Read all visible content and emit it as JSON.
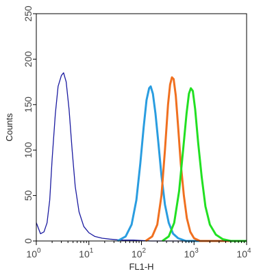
{
  "chart_data": {
    "type": "line",
    "xlabel": "FL1-H",
    "ylabel": "Counts",
    "x_scale": "log",
    "xlim": [
      1,
      10000
    ],
    "ylim": [
      0,
      250
    ],
    "y_ticks": [
      0,
      50,
      100,
      150,
      200,
      250
    ],
    "y_tick_labels": [
      "0",
      "50",
      "100",
      "150",
      "200",
      "250"
    ],
    "x_ticks": [
      1,
      10,
      100,
      1000,
      10000
    ],
    "x_tick_labels": [
      {
        "base": "10",
        "exp": "0"
      },
      {
        "base": "10",
        "exp": "1"
      },
      {
        "base": "10",
        "exp": "2"
      },
      {
        "base": "10",
        "exp": "3"
      },
      {
        "base": "10",
        "exp": "4"
      }
    ],
    "grid": false,
    "legend": "none",
    "series": [
      {
        "color": "#1a1aa0",
        "style": "outline",
        "points": [
          [
            1.0,
            20
          ],
          [
            1.2,
            8
          ],
          [
            1.4,
            10
          ],
          [
            1.6,
            20
          ],
          [
            1.8,
            45
          ],
          [
            2.0,
            90
          ],
          [
            2.3,
            140
          ],
          [
            2.6,
            170
          ],
          [
            3.0,
            182
          ],
          [
            3.3,
            185
          ],
          [
            3.7,
            175
          ],
          [
            4.2,
            145
          ],
          [
            4.8,
            100
          ],
          [
            5.5,
            60
          ],
          [
            6.5,
            32
          ],
          [
            8.0,
            16
          ],
          [
            10,
            9
          ],
          [
            13,
            5
          ],
          [
            18,
            3
          ],
          [
            25,
            2
          ],
          [
            40,
            1
          ],
          [
            70,
            1
          ],
          [
            150,
            0
          ],
          [
            400,
            0
          ],
          [
            10000,
            0
          ]
        ]
      },
      {
        "color": "#2a9de0",
        "style": "line",
        "points": [
          [
            35,
            0
          ],
          [
            50,
            5
          ],
          [
            65,
            18
          ],
          [
            80,
            45
          ],
          [
            95,
            85
          ],
          [
            110,
            125
          ],
          [
            125,
            155
          ],
          [
            140,
            168
          ],
          [
            150,
            170
          ],
          [
            165,
            162
          ],
          [
            185,
            140
          ],
          [
            210,
            108
          ],
          [
            240,
            72
          ],
          [
            280,
            40
          ],
          [
            330,
            20
          ],
          [
            400,
            8
          ],
          [
            500,
            3
          ],
          [
            700,
            0
          ],
          [
            10000,
            0
          ]
        ]
      },
      {
        "color": "#f07020",
        "style": "line",
        "points": [
          [
            120,
            0
          ],
          [
            160,
            5
          ],
          [
            200,
            18
          ],
          [
            240,
            50
          ],
          [
            280,
            100
          ],
          [
            320,
            150
          ],
          [
            350,
            172
          ],
          [
            380,
            180
          ],
          [
            410,
            178
          ],
          [
            450,
            160
          ],
          [
            500,
            125
          ],
          [
            560,
            85
          ],
          [
            640,
            50
          ],
          [
            730,
            25
          ],
          [
            850,
            10
          ],
          [
            1000,
            3
          ],
          [
            1300,
            0
          ],
          [
            10000,
            0
          ]
        ]
      },
      {
        "color": "#22e022",
        "style": "line",
        "points": [
          [
            250,
            0
          ],
          [
            330,
            5
          ],
          [
            420,
            20
          ],
          [
            520,
            55
          ],
          [
            620,
            100
          ],
          [
            720,
            140
          ],
          [
            800,
            162
          ],
          [
            870,
            168
          ],
          [
            950,
            165
          ],
          [
            1050,
            145
          ],
          [
            1200,
            108
          ],
          [
            1400,
            70
          ],
          [
            1650,
            38
          ],
          [
            2000,
            18
          ],
          [
            2600,
            7
          ],
          [
            3500,
            2
          ],
          [
            5000,
            0
          ],
          [
            10000,
            0
          ]
        ]
      }
    ]
  }
}
